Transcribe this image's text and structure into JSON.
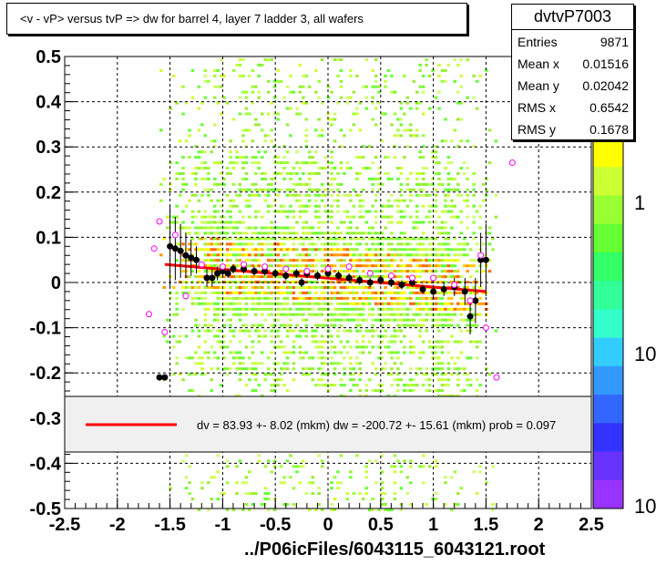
{
  "title": "<v - vP>       versus  tvP =>  dw for barrel 4, layer 7 ladder 3, all wafers",
  "stats": {
    "name": "dvtvP7003",
    "rows": [
      {
        "key": "Entries",
        "value": "9871"
      },
      {
        "key": "Mean x",
        "value": "0.01516"
      },
      {
        "key": "Mean y",
        "value": "0.02042"
      },
      {
        "key": "RMS x",
        "value": "0.6542"
      },
      {
        "key": "RMS y",
        "value": "0.1678"
      }
    ]
  },
  "legend": {
    "text": "dv =   83.93 +-  8.02 (mkm) dw = -200.72 +- 15.61 (mkm) prob = 0.097",
    "line_color": "#ff0000"
  },
  "footer": "../P06icFiles/6043115_6043121.root",
  "colorbar": {
    "labels": [
      "1",
      "10",
      "10"
    ]
  },
  "colors": {
    "fit": "#ff0000",
    "profile": "#000000",
    "open_marker": "#ff00ff"
  },
  "chart_data": {
    "type": "scatter",
    "title": "<v - vP>       versus  tvP =>  dw for barrel 4, layer 7 ladder 3, all wafers",
    "xlabel": "",
    "ylabel": "",
    "xlim": [
      -2.5,
      2.5
    ],
    "ylim": [
      -0.5,
      0.5
    ],
    "x_ticks": [
      -2.5,
      -2,
      -1.5,
      -1,
      -0.5,
      0,
      0.5,
      1,
      1.5,
      2,
      2.5
    ],
    "y_ticks": [
      -0.5,
      -0.4,
      -0.3,
      -0.2,
      -0.1,
      0,
      0.1,
      0.2,
      0.3,
      0.4,
      0.5
    ],
    "grid": true,
    "fit_line": {
      "x": [
        -1.55,
        1.5
      ],
      "y": [
        0.04,
        -0.02
      ]
    },
    "profile_series": {
      "name": "profile",
      "x": [
        -1.6,
        -1.55,
        -1.5,
        -1.45,
        -1.4,
        -1.35,
        -1.3,
        -1.25,
        -1.15,
        -1.1,
        -1.05,
        -1.0,
        -0.95,
        -0.9,
        -0.8,
        -0.7,
        -0.6,
        -0.5,
        -0.4,
        -0.3,
        -0.25,
        -0.2,
        -0.1,
        0.0,
        0.1,
        0.2,
        0.3,
        0.4,
        0.5,
        0.6,
        0.7,
        0.8,
        0.9,
        1.0,
        1.1,
        1.2,
        1.3,
        1.35,
        1.4,
        1.45,
        1.5
      ],
      "y": [
        -0.21,
        -0.21,
        0.08,
        0.075,
        0.07,
        0.06,
        0.055,
        0.05,
        0.01,
        0.01,
        0.02,
        0.025,
        0.02,
        0.03,
        0.03,
        0.025,
        0.025,
        0.02,
        0.015,
        0.02,
        0.0,
        0.02,
        0.015,
        0.02,
        0.015,
        0.01,
        0.005,
        0.0,
        0.005,
        0.0,
        -0.005,
        0.0,
        -0.015,
        -0.02,
        -0.015,
        -0.01,
        -0.02,
        -0.075,
        -0.04,
        0.05,
        0.05
      ],
      "err": [
        0.0,
        0.0,
        0.09,
        0.07,
        0.06,
        0.05,
        0.04,
        0.03,
        0.02,
        0.02,
        0.015,
        0.01,
        0.01,
        0.01,
        0.01,
        0.01,
        0.01,
        0.01,
        0.01,
        0.01,
        0.01,
        0.01,
        0.01,
        0.01,
        0.01,
        0.01,
        0.01,
        0.01,
        0.01,
        0.01,
        0.01,
        0.01,
        0.01,
        0.015,
        0.015,
        0.02,
        0.03,
        0.04,
        0.05,
        0.06,
        0.08
      ]
    },
    "open_series": {
      "name": "open",
      "x": [
        -1.7,
        -1.65,
        -1.6,
        -1.55,
        -1.45,
        -1.35,
        -1.2,
        -1.0,
        -0.8,
        -0.6,
        -0.4,
        -0.2,
        0.0,
        0.2,
        0.4,
        0.6,
        0.8,
        1.0,
        1.2,
        1.35,
        1.45,
        1.5,
        1.6,
        1.75
      ],
      "y": [
        -0.07,
        0.075,
        0.135,
        -0.11,
        0.105,
        -0.03,
        0.04,
        0.035,
        0.04,
        0.035,
        0.03,
        0.025,
        0.03,
        0.035,
        0.02,
        0.015,
        0.01,
        0.01,
        -0.005,
        -0.04,
        0.06,
        -0.1,
        -0.21,
        0.265
      ]
    }
  }
}
